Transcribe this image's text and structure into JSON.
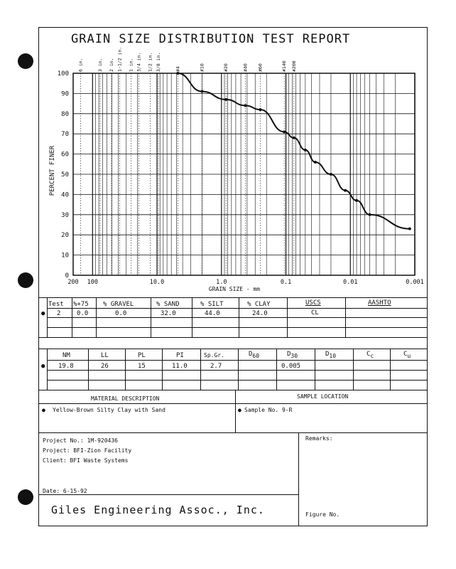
{
  "report": {
    "title": "GRAIN SIZE DISTRIBUTION TEST REPORT"
  },
  "chart_data": {
    "type": "line",
    "xlabel": "GRAIN SIZE - mm",
    "ylabel": "PERCENT FINER",
    "x_scale": "log",
    "x_reversed": true,
    "xlim": [
      200,
      0.001
    ],
    "ylim": [
      0,
      100
    ],
    "x_ticks": [
      "200",
      "100",
      "10.0",
      "1.0",
      "0.1",
      "0.01",
      "0.001"
    ],
    "y_ticks": [
      "0",
      "10",
      "20",
      "30",
      "40",
      "50",
      "60",
      "70",
      "80",
      "90",
      "100"
    ],
    "grid": true,
    "sieves": [
      {
        "label": "6 in.",
        "size": 152.4
      },
      {
        "label": "3 in.",
        "size": 76.2
      },
      {
        "label": "2 in.",
        "size": 50.8
      },
      {
        "label": "1-1/2 in.",
        "size": 38.1
      },
      {
        "label": "1 in.",
        "size": 25.4
      },
      {
        "label": "3/4 in.",
        "size": 19.05
      },
      {
        "label": "1/2 in.",
        "size": 12.7
      },
      {
        "label": "3/8 in.",
        "size": 9.525
      },
      {
        "label": "#4",
        "size": 4.75
      },
      {
        "label": "#10",
        "size": 2.0
      },
      {
        "label": "#20",
        "size": 0.85
      },
      {
        "label": "#40",
        "size": 0.425
      },
      {
        "label": "#60",
        "size": 0.25
      },
      {
        "label": "#140",
        "size": 0.106
      },
      {
        "label": "#200",
        "size": 0.075
      }
    ],
    "series": [
      {
        "x": [
          4.75,
          2.0,
          0.85,
          0.425,
          0.25,
          0.106,
          0.075,
          0.05,
          0.035,
          0.02,
          0.012,
          0.008,
          0.005,
          0.0012
        ],
        "y": [
          100,
          91,
          87,
          84,
          82,
          71,
          68,
          62,
          56,
          50,
          42,
          37,
          30,
          23
        ]
      }
    ]
  },
  "table1": {
    "headers": [
      "Test",
      "%+75",
      "% GRAVEL",
      "% SAND",
      "% SILT",
      "% CLAY",
      "USCS",
      "AASHTO"
    ],
    "row": {
      "marker": "●",
      "test": "2",
      "plus75": "0.0",
      "gravel": "0.0",
      "sand": "32.0",
      "silt": "44.0",
      "clay": "24.0",
      "uscs": "CL",
      "aashto": ""
    }
  },
  "table2": {
    "headers": {
      "nm": "NM",
      "ll": "LL",
      "pl": "PL",
      "pi": "PI",
      "spgr": "Sp.Gr.",
      "d60": "D",
      "d60_sub": "60",
      "d30": "D",
      "d30_sub": "30",
      "d10": "D",
      "d10_sub": "10",
      "cc": "C",
      "cc_sub": "c",
      "cu": "C",
      "cu_sub": "u"
    },
    "row": {
      "marker": "●",
      "nm": "19.8",
      "ll": "26",
      "pl": "15",
      "pi": "11.0",
      "spgr": "2.7",
      "d60": "",
      "d30": "0.005",
      "d10": "",
      "cc": "",
      "cu": ""
    }
  },
  "material": {
    "header": "MATERIAL DESCRIPTION",
    "marker": "●",
    "value": "Yellow-Brown Silty Clay with Sand"
  },
  "sample": {
    "header": "SAMPLE LOCATION",
    "marker": "●",
    "value": "Sample No. 9-R"
  },
  "project": {
    "project_no": "Project No.: 1M-920436",
    "project": "Project: BFI-Zion Facility",
    "client": "Client: BFI Waste Systems",
    "date": "Date: 6-15-92",
    "company": "Giles Engineering Assoc., Inc."
  },
  "remarks": {
    "label": "Remarks:"
  },
  "figure": {
    "label": "Figure No."
  }
}
